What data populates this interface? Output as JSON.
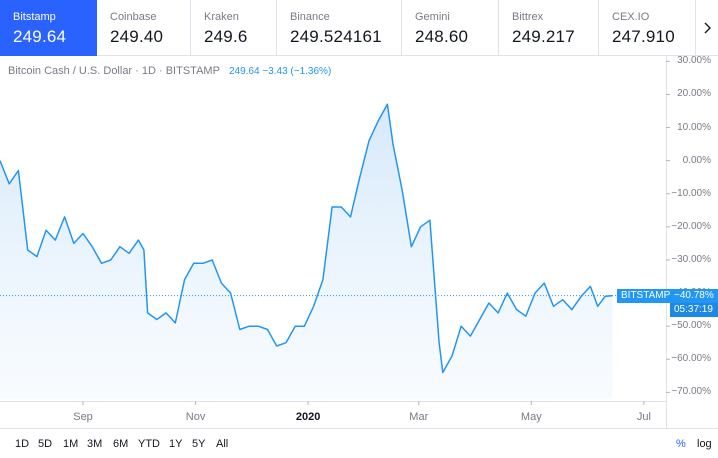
{
  "exchanges": [
    {
      "name": "Bitstamp",
      "price": "249.64",
      "active": true
    },
    {
      "name": "Coinbase",
      "price": "249.40"
    },
    {
      "name": "Kraken",
      "price": "249.6"
    },
    {
      "name": "Binance",
      "price": "249.524161"
    },
    {
      "name": "Gemini",
      "price": "248.60"
    },
    {
      "name": "Bittrex",
      "price": "249.217"
    },
    {
      "name": "CEX.IO",
      "price": "247.910"
    }
  ],
  "legend": {
    "symbol": "Bitcoin Cash / U.S. Dollar · 1D · BITSTAMP",
    "value": "249.64 −3.43 (−1.36%)"
  },
  "colors": {
    "line": "#2196f3",
    "accent": "#2962ff",
    "fill_top": "#d6e9fb",
    "fill_bottom": "#f4f9fe"
  },
  "current": {
    "label": "BITSTAMP",
    "pct_label": "−40.78%",
    "pct": -40.78,
    "countdown": "05:37:19"
  },
  "toolbar": {
    "ranges": [
      "1D",
      "5D",
      "1M",
      "3M",
      "6M",
      "YTD",
      "1Y",
      "5Y",
      "All"
    ],
    "percent_label": "%",
    "log_label": "log"
  },
  "chart_data": {
    "type": "area",
    "title": "Bitcoin Cash / U.S. Dollar · 1D · BITSTAMP",
    "y_scale": "percent",
    "ylim": [
      -72,
      31
    ],
    "y_ticks": [
      30,
      20,
      10,
      0,
      -10,
      -20,
      -30,
      -40,
      -50,
      -60,
      -70
    ],
    "y_tick_labels": [
      "30.00%",
      "20.00%",
      "10.00%",
      "0.00%",
      "−10.00%",
      "−20.00%",
      "−30.00%",
      "−40.00%",
      "−50.00%",
      "−60.00%",
      "−70.00%"
    ],
    "x_ticks": [
      {
        "label": "Sep",
        "date": "2019-09-01"
      },
      {
        "label": "Nov",
        "date": "2019-11-01"
      },
      {
        "label": "2020",
        "date": "2020-01-01"
      },
      {
        "label": "Mar",
        "date": "2020-03-01"
      },
      {
        "label": "May",
        "date": "2020-05-01"
      },
      {
        "label": "Jul",
        "date": "2020-07-01"
      }
    ],
    "xlim": [
      "2019-07-18",
      "2020-07-13"
    ],
    "grid": false,
    "series": [
      {
        "name": "BITSTAMP",
        "points": [
          [
            "2019-07-18",
            0
          ],
          [
            "2019-07-23",
            -7
          ],
          [
            "2019-07-28",
            -3
          ],
          [
            "2019-08-02",
            -27
          ],
          [
            "2019-08-07",
            -29
          ],
          [
            "2019-08-12",
            -21
          ],
          [
            "2019-08-17",
            -24
          ],
          [
            "2019-08-22",
            -17
          ],
          [
            "2019-08-27",
            -25
          ],
          [
            "2019-09-01",
            -22
          ],
          [
            "2019-09-06",
            -26
          ],
          [
            "2019-09-11",
            -31
          ],
          [
            "2019-09-16",
            -30
          ],
          [
            "2019-09-21",
            -26
          ],
          [
            "2019-09-26",
            -28
          ],
          [
            "2019-10-01",
            -24
          ],
          [
            "2019-10-04",
            -27
          ],
          [
            "2019-10-06",
            -46
          ],
          [
            "2019-10-11",
            -48
          ],
          [
            "2019-10-16",
            -46
          ],
          [
            "2019-10-21",
            -49
          ],
          [
            "2019-10-26",
            -36
          ],
          [
            "2019-10-31",
            -31
          ],
          [
            "2019-11-05",
            -31
          ],
          [
            "2019-11-10",
            -30
          ],
          [
            "2019-11-15",
            -37
          ],
          [
            "2019-11-20",
            -40
          ],
          [
            "2019-11-25",
            -51
          ],
          [
            "2019-11-30",
            -50
          ],
          [
            "2019-12-05",
            -50
          ],
          [
            "2019-12-10",
            -51
          ],
          [
            "2019-12-15",
            -56
          ],
          [
            "2019-12-20",
            -55
          ],
          [
            "2019-12-25",
            -50
          ],
          [
            "2019-12-30",
            -50
          ],
          [
            "2020-01-04",
            -44
          ],
          [
            "2020-01-09",
            -36
          ],
          [
            "2020-01-14",
            -14
          ],
          [
            "2020-01-19",
            -14
          ],
          [
            "2020-01-24",
            -17
          ],
          [
            "2020-01-29",
            -5
          ],
          [
            "2020-02-03",
            6
          ],
          [
            "2020-02-08",
            12
          ],
          [
            "2020-02-13",
            17
          ],
          [
            "2020-02-16",
            5
          ],
          [
            "2020-02-21",
            -9
          ],
          [
            "2020-02-26",
            -26
          ],
          [
            "2020-03-02",
            -20
          ],
          [
            "2020-03-07",
            -18
          ],
          [
            "2020-03-12",
            -55
          ],
          [
            "2020-03-14",
            -64
          ],
          [
            "2020-03-19",
            -59
          ],
          [
            "2020-03-24",
            -50
          ],
          [
            "2020-03-29",
            -53
          ],
          [
            "2020-04-03",
            -48
          ],
          [
            "2020-04-08",
            -43
          ],
          [
            "2020-04-13",
            -46
          ],
          [
            "2020-04-18",
            -40
          ],
          [
            "2020-04-23",
            -45
          ],
          [
            "2020-04-28",
            -47
          ],
          [
            "2020-05-03",
            -40
          ],
          [
            "2020-05-08",
            -37
          ],
          [
            "2020-05-13",
            -44
          ],
          [
            "2020-05-18",
            -42
          ],
          [
            "2020-05-23",
            -45
          ],
          [
            "2020-05-28",
            -41
          ],
          [
            "2020-06-02",
            -38
          ],
          [
            "2020-06-06",
            -44
          ],
          [
            "2020-06-10",
            -41
          ],
          [
            "2020-06-14",
            -40.78
          ]
        ]
      }
    ]
  }
}
